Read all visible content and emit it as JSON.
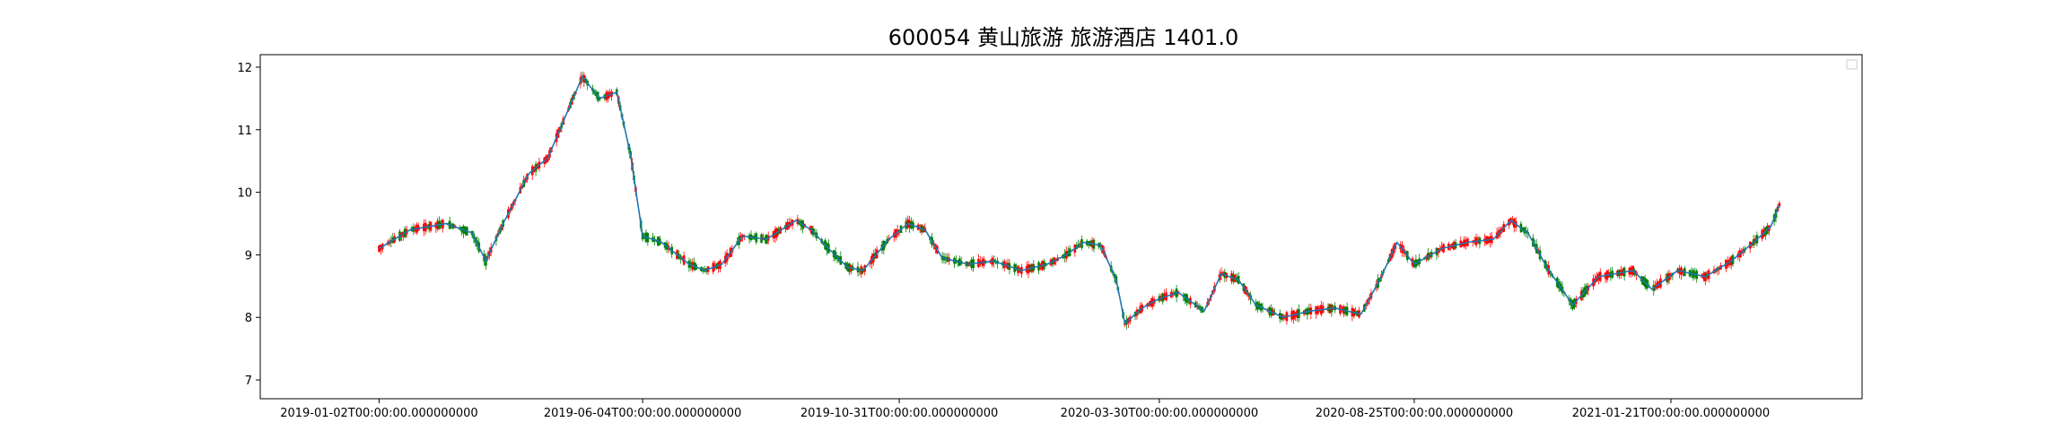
{
  "chart_data": {
    "type": "candlestick",
    "title": "600054 黄山旅游 旅游酒店 1401.0",
    "xlabel": "",
    "ylabel": "",
    "ylim": [
      6.7,
      12.2
    ],
    "yticks": [
      7,
      8,
      9,
      10,
      11,
      12
    ],
    "x_range": [
      "2018-10-25",
      "2021-05-12"
    ],
    "xticks": [
      "2019-01-02T00:00:00.000000000",
      "2019-06-04T00:00:00.000000000",
      "2019-10-31T00:00:00.000000000",
      "2020-03-30T00:00:00.000000000",
      "2020-08-25T00:00:00.000000000",
      "2021-01-21T00:00:00.000000000"
    ],
    "grid": false,
    "legend": "top-right (empty)",
    "colors": {
      "up": "#ff0000",
      "down": "#008000",
      "line": "#1f77b4"
    },
    "series": [
      {
        "kind": "close-curve",
        "points": [
          [
            "2019-01-02",
            9.1
          ],
          [
            "2019-01-20",
            9.4
          ],
          [
            "2019-02-10",
            9.5
          ],
          [
            "2019-02-25",
            9.35
          ],
          [
            "2019-03-05",
            8.9
          ],
          [
            "2019-03-15",
            9.5
          ],
          [
            "2019-03-30",
            10.3
          ],
          [
            "2019-04-10",
            10.55
          ],
          [
            "2019-04-20",
            11.2
          ],
          [
            "2019-04-30",
            11.85
          ],
          [
            "2019-05-10",
            11.5
          ],
          [
            "2019-05-20",
            11.6
          ],
          [
            "2019-05-28",
            10.6
          ],
          [
            "2019-06-04",
            9.3
          ],
          [
            "2019-06-15",
            9.2
          ],
          [
            "2019-07-01",
            8.85
          ],
          [
            "2019-07-10",
            8.75
          ],
          [
            "2019-07-20",
            8.85
          ],
          [
            "2019-08-01",
            9.3
          ],
          [
            "2019-08-15",
            9.25
          ],
          [
            "2019-09-01",
            9.55
          ],
          [
            "2019-09-10",
            9.4
          ],
          [
            "2019-09-20",
            9.1
          ],
          [
            "2019-10-01",
            8.8
          ],
          [
            "2019-10-10",
            8.75
          ],
          [
            "2019-10-25",
            9.25
          ],
          [
            "2019-11-05",
            9.5
          ],
          [
            "2019-11-15",
            9.4
          ],
          [
            "2019-11-25",
            8.95
          ],
          [
            "2019-12-10",
            8.85
          ],
          [
            "2019-12-25",
            8.9
          ],
          [
            "2020-01-10",
            8.75
          ],
          [
            "2020-01-25",
            8.85
          ],
          [
            "2020-02-05",
            9.0
          ],
          [
            "2020-02-15",
            9.2
          ],
          [
            "2020-02-25",
            9.15
          ],
          [
            "2020-03-05",
            8.6
          ],
          [
            "2020-03-10",
            7.9
          ],
          [
            "2020-03-20",
            8.15
          ],
          [
            "2020-03-30",
            8.3
          ],
          [
            "2020-04-10",
            8.4
          ],
          [
            "2020-04-25",
            8.1
          ],
          [
            "2020-05-05",
            8.7
          ],
          [
            "2020-05-15",
            8.6
          ],
          [
            "2020-05-25",
            8.2
          ],
          [
            "2020-06-10",
            8.0
          ],
          [
            "2020-06-25",
            8.1
          ],
          [
            "2020-07-10",
            8.15
          ],
          [
            "2020-07-25",
            8.05
          ],
          [
            "2020-08-05",
            8.6
          ],
          [
            "2020-08-15",
            9.2
          ],
          [
            "2020-08-25",
            8.85
          ],
          [
            "2020-09-10",
            9.1
          ],
          [
            "2020-09-25",
            9.2
          ],
          [
            "2020-10-10",
            9.25
          ],
          [
            "2020-10-20",
            9.55
          ],
          [
            "2020-10-30",
            9.35
          ],
          [
            "2020-11-10",
            8.8
          ],
          [
            "2020-11-25",
            8.2
          ],
          [
            "2020-12-10",
            8.65
          ],
          [
            "2020-12-30",
            8.75
          ],
          [
            "2021-01-10",
            8.45
          ],
          [
            "2021-01-25",
            8.75
          ],
          [
            "2021-02-10",
            8.65
          ],
          [
            "2021-02-25",
            8.9
          ],
          [
            "2021-03-10",
            9.2
          ],
          [
            "2021-03-20",
            9.45
          ],
          [
            "2021-03-25",
            9.8
          ]
        ]
      }
    ]
  }
}
